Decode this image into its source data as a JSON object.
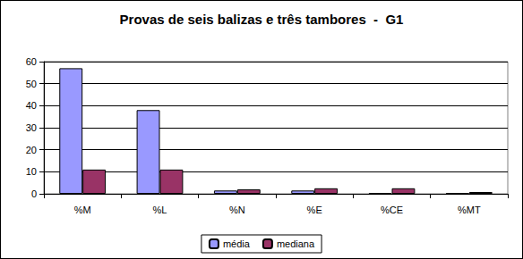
{
  "chart_data": {
    "type": "bar",
    "title": "Provas de seis balizas e três tambores  -  G1",
    "categories": [
      "%M",
      "%L",
      "%N",
      "%E",
      "%CE",
      "%MT"
    ],
    "series": [
      {
        "name": "média",
        "color": "#9999ff",
        "values": [
          57,
          38,
          1.5,
          1.5,
          0.3,
          0.3
        ]
      },
      {
        "name": "mediana",
        "color": "#993366",
        "values": [
          11,
          11,
          2,
          2.5,
          2.5,
          0.8
        ]
      }
    ],
    "ylim": [
      0,
      60
    ],
    "yticks": [
      0,
      10,
      20,
      30,
      40,
      50,
      60
    ],
    "grid": true,
    "legend": "bottom"
  }
}
